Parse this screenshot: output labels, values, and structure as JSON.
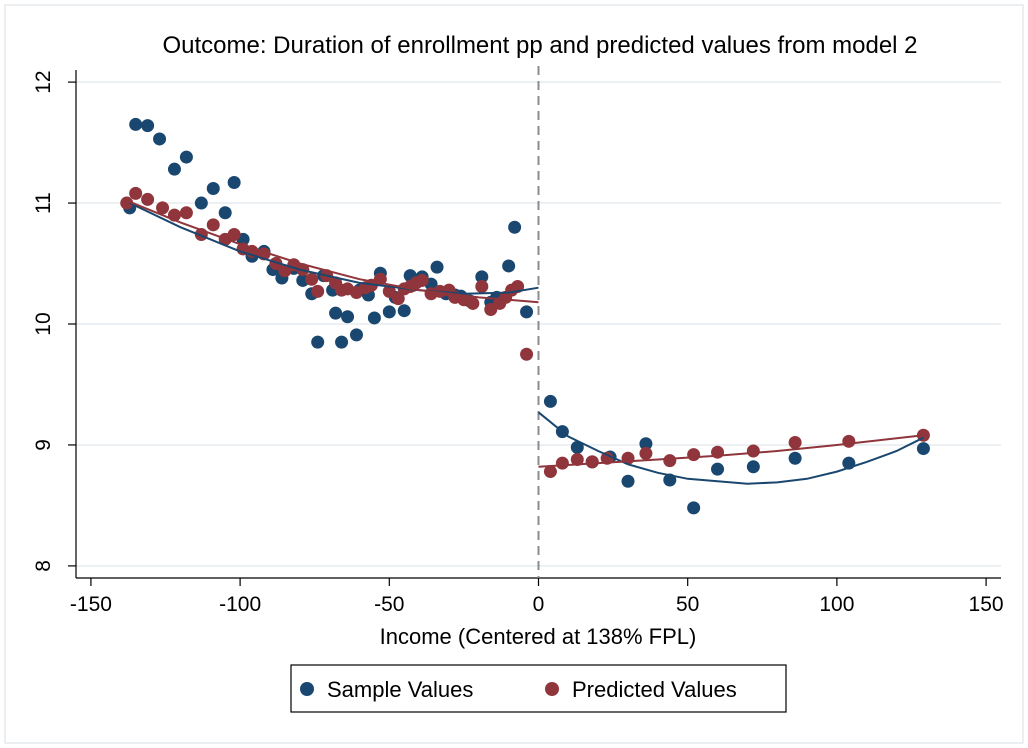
{
  "chart_data": {
    "type": "scatter",
    "title": "Outcome: Duration of enrollment pp and predicted values from model 2",
    "xlabel": "Income (Centered at 138% FPL)",
    "ylabel": "",
    "xlim": [
      -155,
      155
    ],
    "ylim": [
      7.9,
      12.1
    ],
    "x_ticks": [
      -150,
      -100,
      -50,
      0,
      50,
      100,
      150
    ],
    "y_ticks": [
      8,
      9,
      10,
      11,
      12
    ],
    "x_tick_labels": [
      "-150",
      "-100",
      "-50",
      "0",
      "50",
      "100",
      "150"
    ],
    "y_tick_labels": [
      "8",
      "9",
      "10",
      "11",
      "12"
    ],
    "grid": "horizontal",
    "cutoff": 0,
    "legend_position": "bottom",
    "colors": {
      "sample": "#1a476f",
      "predicted": "#90353b",
      "cutoff_line": "#8c8c8c",
      "grid": "#e6ecef"
    },
    "series": [
      {
        "name": "Sample Values",
        "color": "#1a476f",
        "points": [
          [
            -137,
            10.96
          ],
          [
            -135,
            11.65
          ],
          [
            -131,
            11.64
          ],
          [
            -127,
            11.53
          ],
          [
            -122,
            11.28
          ],
          [
            -118,
            11.38
          ],
          [
            -113,
            11.0
          ],
          [
            -109,
            11.12
          ],
          [
            -105,
            10.92
          ],
          [
            -102,
            11.17
          ],
          [
            -99,
            10.7
          ],
          [
            -96,
            10.56
          ],
          [
            -92,
            10.6
          ],
          [
            -89,
            10.45
          ],
          [
            -86,
            10.38
          ],
          [
            -82,
            10.46
          ],
          [
            -79,
            10.36
          ],
          [
            -76,
            10.25
          ],
          [
            -74,
            9.85
          ],
          [
            -72,
            10.4
          ],
          [
            -69,
            10.28
          ],
          [
            -68,
            10.09
          ],
          [
            -66,
            9.85
          ],
          [
            -64,
            10.06
          ],
          [
            -61,
            9.91
          ],
          [
            -60,
            10.28
          ],
          [
            -57,
            10.24
          ],
          [
            -55,
            10.05
          ],
          [
            -53,
            10.42
          ],
          [
            -50,
            10.1
          ],
          [
            -48,
            10.22
          ],
          [
            -45,
            10.11
          ],
          [
            -43,
            10.4
          ],
          [
            -42,
            10.32
          ],
          [
            -39,
            10.39
          ],
          [
            -36,
            10.33
          ],
          [
            -34,
            10.47
          ],
          [
            -31,
            10.25
          ],
          [
            -28,
            10.24
          ],
          [
            -26,
            10.23
          ],
          [
            -23,
            10.19
          ],
          [
            -19,
            10.39
          ],
          [
            -16,
            10.18
          ],
          [
            -14,
            10.22
          ],
          [
            -10,
            10.48
          ],
          [
            -8,
            10.8
          ],
          [
            -4,
            10.1
          ],
          [
            4,
            9.36
          ],
          [
            8,
            9.11
          ],
          [
            13,
            8.98
          ],
          [
            18,
            8.86
          ],
          [
            24,
            8.9
          ],
          [
            30,
            8.7
          ],
          [
            36,
            9.01
          ],
          [
            44,
            8.71
          ],
          [
            52,
            8.48
          ],
          [
            60,
            8.8
          ],
          [
            72,
            8.82
          ],
          [
            86,
            8.89
          ],
          [
            104,
            8.85
          ],
          [
            129,
            8.97
          ]
        ]
      },
      {
        "name": "Predicted Values",
        "color": "#90353b",
        "points": [
          [
            -138,
            11.0
          ],
          [
            -135,
            11.08
          ],
          [
            -131,
            11.03
          ],
          [
            -126,
            10.96
          ],
          [
            -122,
            10.9
          ],
          [
            -118,
            10.92
          ],
          [
            -113,
            10.74
          ],
          [
            -109,
            10.82
          ],
          [
            -105,
            10.7
          ],
          [
            -102,
            10.74
          ],
          [
            -99,
            10.62
          ],
          [
            -96,
            10.6
          ],
          [
            -92,
            10.58
          ],
          [
            -88,
            10.5
          ],
          [
            -85,
            10.44
          ],
          [
            -82,
            10.49
          ],
          [
            -79,
            10.45
          ],
          [
            -76,
            10.37
          ],
          [
            -74,
            10.27
          ],
          [
            -71,
            10.4
          ],
          [
            -68,
            10.34
          ],
          [
            -66,
            10.28
          ],
          [
            -64,
            10.29
          ],
          [
            -61,
            10.26
          ],
          [
            -58,
            10.3
          ],
          [
            -56,
            10.32
          ],
          [
            -53,
            10.37
          ],
          [
            -50,
            10.27
          ],
          [
            -47,
            10.21
          ],
          [
            -45,
            10.29
          ],
          [
            -43,
            10.31
          ],
          [
            -41,
            10.34
          ],
          [
            -39,
            10.36
          ],
          [
            -36,
            10.25
          ],
          [
            -33,
            10.27
          ],
          [
            -30,
            10.28
          ],
          [
            -28,
            10.22
          ],
          [
            -25,
            10.2
          ],
          [
            -22,
            10.17
          ],
          [
            -19,
            10.31
          ],
          [
            -16,
            10.12
          ],
          [
            -13,
            10.17
          ],
          [
            -11,
            10.22
          ],
          [
            -9,
            10.28
          ],
          [
            -7,
            10.31
          ],
          [
            -4,
            9.75
          ],
          [
            4,
            8.78
          ],
          [
            8,
            8.85
          ],
          [
            13,
            8.88
          ],
          [
            18,
            8.86
          ],
          [
            23,
            8.89
          ],
          [
            30,
            8.89
          ],
          [
            36,
            8.93
          ],
          [
            44,
            8.87
          ],
          [
            52,
            8.92
          ],
          [
            60,
            8.94
          ],
          [
            72,
            8.95
          ],
          [
            86,
            9.02
          ],
          [
            104,
            9.03
          ],
          [
            129,
            9.08
          ]
        ]
      }
    ],
    "fit_lines": [
      {
        "color": "#1a476f",
        "points": [
          [
            -137,
            11.0
          ],
          [
            -120,
            10.8
          ],
          [
            -100,
            10.6
          ],
          [
            -80,
            10.45
          ],
          [
            -60,
            10.34
          ],
          [
            -40,
            10.28
          ],
          [
            -25,
            10.25
          ],
          [
            -10,
            10.26
          ],
          [
            0,
            10.3
          ]
        ]
      },
      {
        "color": "#1a476f",
        "points": [
          [
            0,
            9.27
          ],
          [
            10,
            9.07
          ],
          [
            20,
            8.95
          ],
          [
            30,
            8.84
          ],
          [
            40,
            8.77
          ],
          [
            50,
            8.72
          ],
          [
            60,
            8.7
          ],
          [
            70,
            8.68
          ],
          [
            80,
            8.69
          ],
          [
            90,
            8.72
          ],
          [
            100,
            8.78
          ],
          [
            110,
            8.86
          ],
          [
            120,
            8.95
          ],
          [
            129,
            9.06
          ]
        ]
      },
      {
        "color": "#90353b",
        "points": [
          [
            -137,
            11.01
          ],
          [
            -120,
            10.84
          ],
          [
            -100,
            10.66
          ],
          [
            -80,
            10.5
          ],
          [
            -60,
            10.37
          ],
          [
            -40,
            10.28
          ],
          [
            -20,
            10.22
          ],
          [
            -10,
            10.2
          ],
          [
            0,
            10.18
          ]
        ]
      },
      {
        "color": "#90353b",
        "points": [
          [
            0,
            8.82
          ],
          [
            20,
            8.85
          ],
          [
            40,
            8.88
          ],
          [
            60,
            8.91
          ],
          [
            80,
            8.95
          ],
          [
            100,
            9.0
          ],
          [
            129,
            9.08
          ]
        ]
      }
    ]
  }
}
